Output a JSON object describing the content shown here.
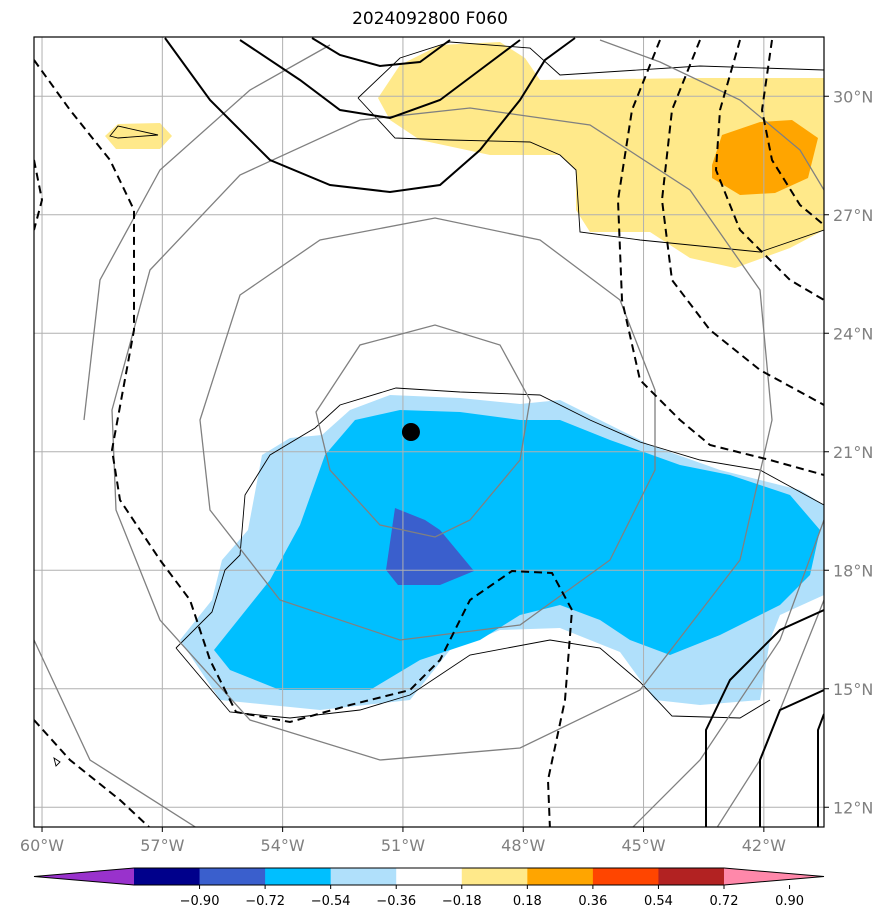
{
  "title": "2024092800 F060",
  "map": {
    "lon_range": [
      -60.2,
      -40.5
    ],
    "lat_range": [
      11.5,
      31.5
    ],
    "lon_ticks": [
      {
        "value": -60,
        "label": "60°W"
      },
      {
        "value": -57,
        "label": "57°W"
      },
      {
        "value": -54,
        "label": "54°W"
      },
      {
        "value": -51,
        "label": "51°W"
      },
      {
        "value": -48,
        "label": "48°W"
      },
      {
        "value": -45,
        "label": "45°W"
      },
      {
        "value": -42,
        "label": "42°W"
      }
    ],
    "lat_ticks": [
      {
        "value": 12,
        "label": "12°N"
      },
      {
        "value": 15,
        "label": "15°N"
      },
      {
        "value": 18,
        "label": "18°N"
      },
      {
        "value": 21,
        "label": "21°N"
      },
      {
        "value": 24,
        "label": "24°N"
      },
      {
        "value": 27,
        "label": "27°N"
      },
      {
        "value": 30,
        "label": "30°N"
      }
    ],
    "center_marker": {
      "lon": -50.8,
      "lat": 21.5
    },
    "colors": {
      "grid": "#b0b0b0",
      "isobar": "#808080",
      "contour": "#000000"
    }
  },
  "colorbar": {
    "labels": [
      "−0.90",
      "−0.72",
      "−0.54",
      "−0.36",
      "−0.18",
      "0.18",
      "0.36",
      "0.54",
      "0.72",
      "0.90"
    ],
    "colors": [
      "#9932cc",
      "#00008b",
      "#3a5fcd",
      "#00bfff",
      "#b0e0fb",
      "#ffffff",
      "#ffe98a",
      "#ffa500",
      "#ff4500",
      "#b22222",
      "#ff88aa"
    ]
  }
}
